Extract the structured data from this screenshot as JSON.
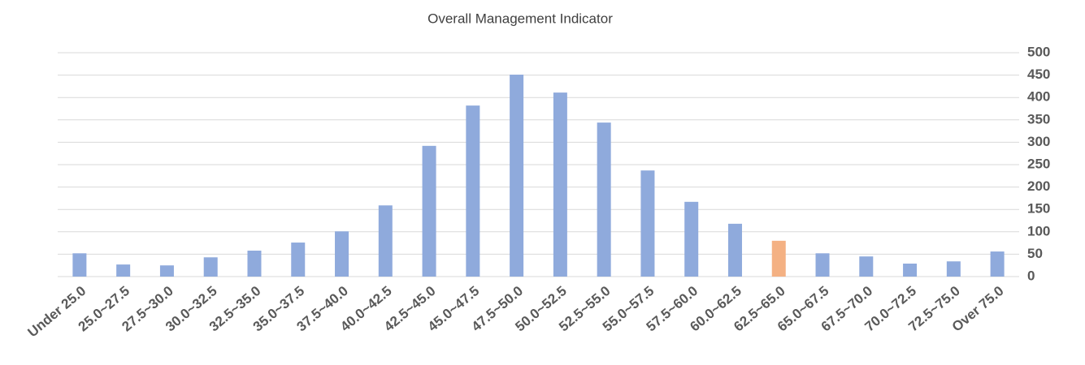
{
  "chart_data": {
    "type": "bar",
    "title": "Overall Management Indicator",
    "categories": [
      "Under 25.0",
      "25.0~27.5",
      "27.5~30.0",
      "30.0~32.5",
      "32.5~35.0",
      "35.0~37.5",
      "37.5~40.0",
      "40.0~42.5",
      "42.5~45.0",
      "45.0~47.5",
      "47.5~50.0",
      "50.0~52.5",
      "52.5~55.0",
      "55.0~57.5",
      "57.5~60.0",
      "60.0~62.5",
      "62.5~65.0",
      "65.0~67.5",
      "67.5~70.0",
      "70.0~72.5",
      "72.5~75.0",
      "Over 75.0"
    ],
    "values": [
      52,
      27,
      25,
      43,
      58,
      76,
      101,
      159,
      292,
      382,
      451,
      411,
      344,
      237,
      167,
      118,
      80,
      52,
      45,
      29,
      34,
      56
    ],
    "colors": [
      "#8faadc",
      "#8faadc",
      "#8faadc",
      "#8faadc",
      "#8faadc",
      "#8faadc",
      "#8faadc",
      "#8faadc",
      "#8faadc",
      "#8faadc",
      "#8faadc",
      "#8faadc",
      "#8faadc",
      "#8faadc",
      "#8faadc",
      "#8faadc",
      "#f4b183",
      "#8faadc",
      "#8faadc",
      "#8faadc",
      "#8faadc",
      "#8faadc"
    ],
    "ylim": [
      0,
      500
    ],
    "yticks": [
      0,
      50,
      100,
      150,
      200,
      250,
      300,
      350,
      400,
      450,
      500
    ],
    "grid": true,
    "y_axis_side": "right"
  }
}
